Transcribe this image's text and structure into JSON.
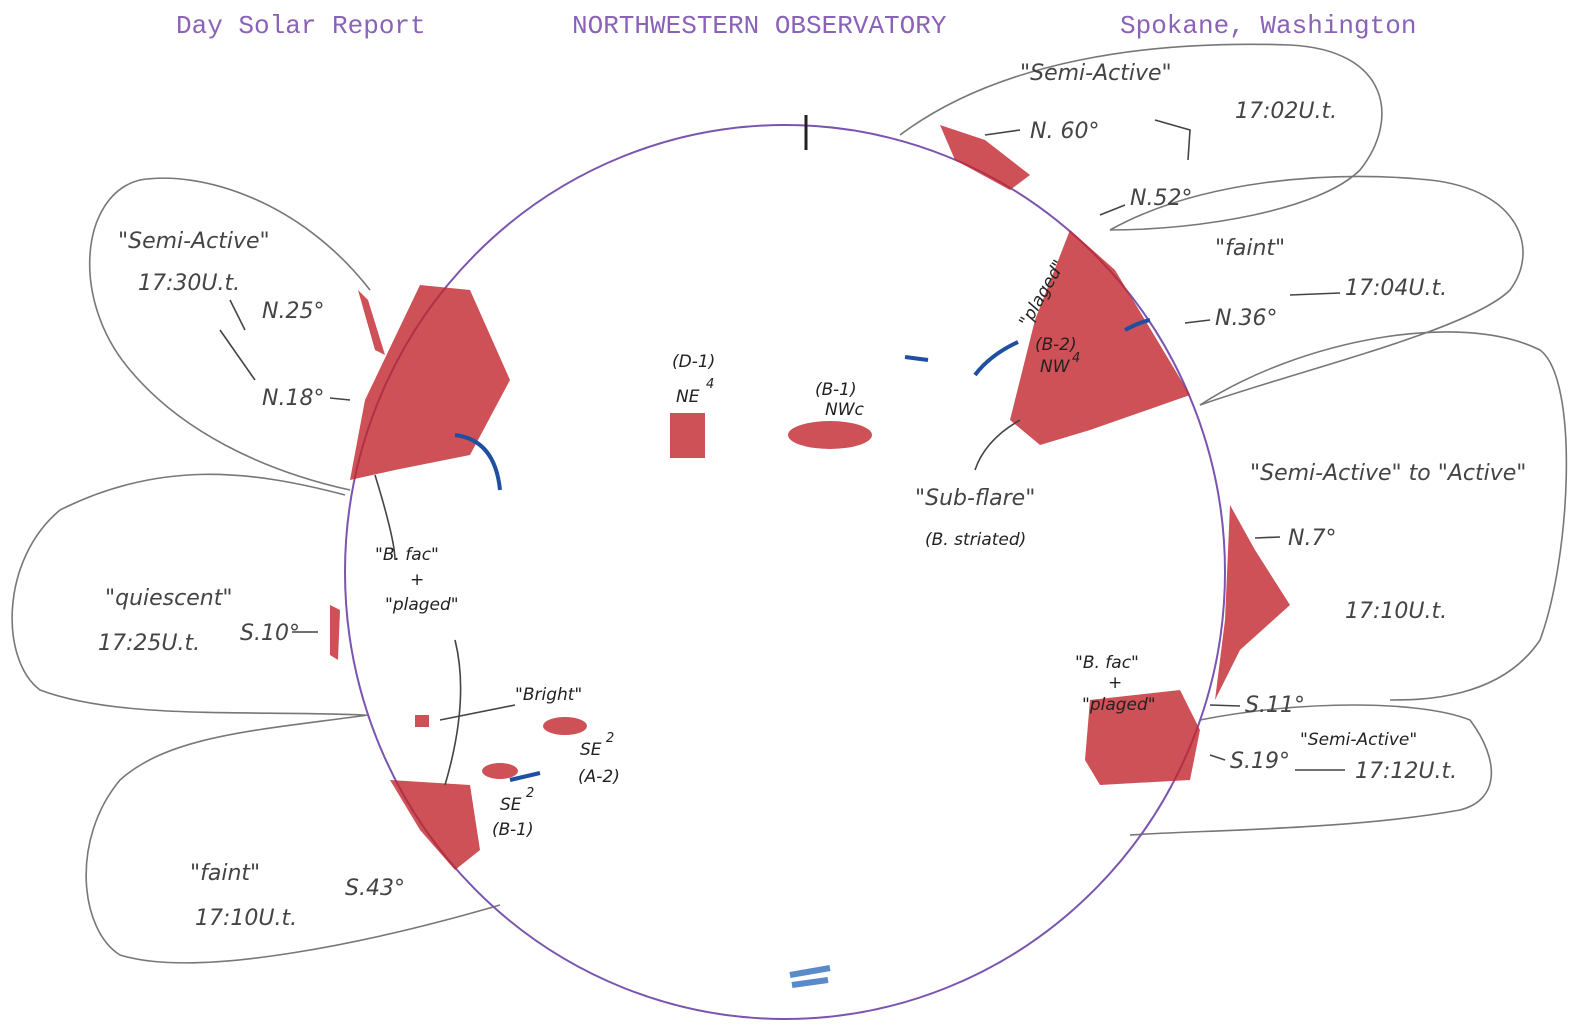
{
  "header": {
    "left": "Day Solar Report",
    "center": "NORTHWESTERN OBSERVATORY",
    "right": "Spokane, Washington"
  },
  "regions": [
    {
      "activity": "\"Semi-Active\"",
      "time": "17:02U.t.",
      "latitudes": [
        "N. 60°",
        "N.52°"
      ]
    },
    {
      "activity": "\"faint\"",
      "time": "17:04U.t.",
      "latitudes": [
        "N.36°"
      ]
    },
    {
      "activity": "\"Semi-Active\" to \"Active\"",
      "time": "17:10U.t.",
      "latitudes": [
        "N.7°"
      ]
    },
    {
      "activity": "\"Semi-Active\"",
      "time": "17:12U.t.",
      "latitudes": [
        "S.11°",
        "S.19°"
      ]
    },
    {
      "activity": "\"Semi-Active\"",
      "time": "17:30U.t.",
      "latitudes": [
        "N.25°",
        "N.18°"
      ]
    },
    {
      "activity": "\"quiescent\"",
      "time": "17:25U.t.",
      "latitudes": [
        "S.10°"
      ]
    },
    {
      "activity": "\"faint\"",
      "time": "17:10U.t.",
      "latitudes": [
        "S.43°"
      ]
    }
  ],
  "disk_notes": {
    "d1": {
      "id": "(D-1)",
      "class": "NE",
      "sup": "4"
    },
    "b1": {
      "id": "(B-1)",
      "class": "NWc"
    },
    "b2": {
      "note": "\"plaged\"",
      "id": "(B-2)",
      "class": "NW",
      "sup": "4"
    },
    "subflare": [
      "\"Sub-flare\"",
      "(B. striated)"
    ],
    "left_fac": [
      "\"B. fac\"",
      "+",
      "\"plaged\""
    ],
    "bright": "\"Bright\"",
    "a2": {
      "class": "SE",
      "sup": "2",
      "id": "(A-2)"
    },
    "b1s": {
      "class": "SE",
      "sup": "2",
      "id": "(B-1)"
    },
    "right_fac": [
      "\"B. fac\"",
      "+",
      "\"plaged\""
    ]
  }
}
